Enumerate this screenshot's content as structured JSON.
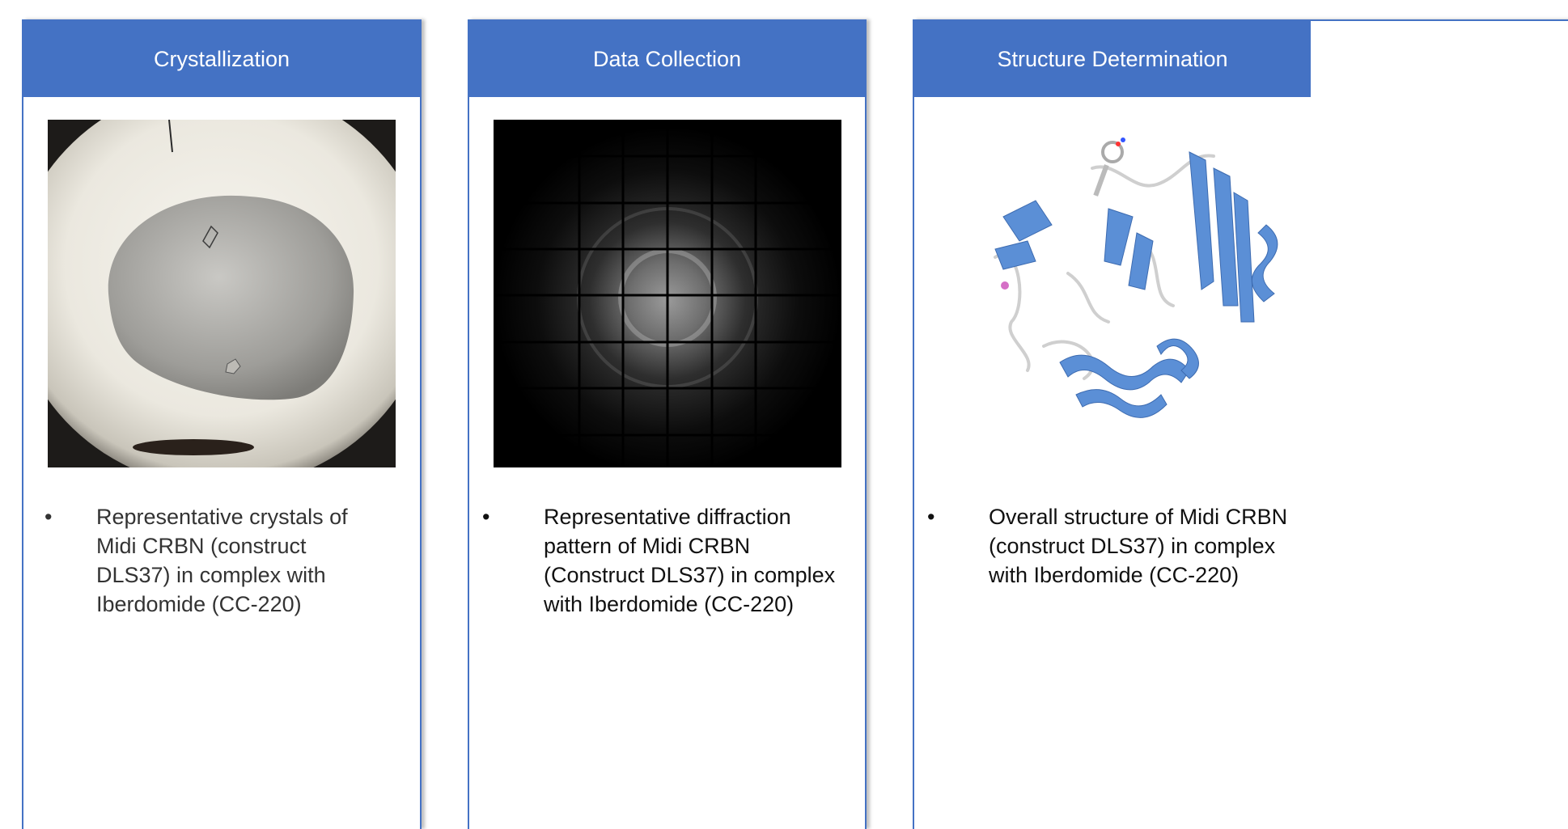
{
  "panels": [
    {
      "header": "Crystallization",
      "bullet": "•",
      "caption": "Representative crystals of Midi CRBN (construct DLS37) in complex with Iberdomide (CC-220)"
    },
    {
      "header": "Data Collection",
      "bullet": "•",
      "caption": "Representative diffraction pattern of Midi CRBN (Construct DLS37) in complex with Iberdomide (CC-220)"
    },
    {
      "header": "Structure Determination",
      "bullet": "•",
      "caption": "Overall structure of Midi CRBN (construct DLS37) in complex with Iberdomide (CC-220)"
    }
  ],
  "colors": {
    "header_blue": "#4472c4",
    "ribbon_blue": "#5b8fd6"
  }
}
